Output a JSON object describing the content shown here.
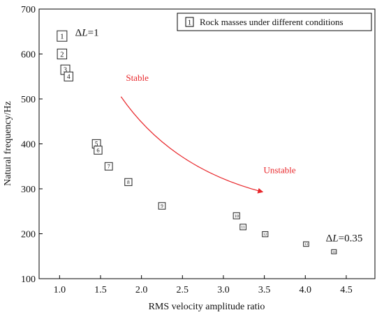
{
  "chart_data": {
    "type": "scatter",
    "xlabel": "RMS velocity amplitude ratio",
    "ylabel": "Natural frequency/Hz",
    "xlim": [
      0.75,
      4.85
    ],
    "ylim": [
      100,
      700
    ],
    "x_ticks": [
      1.0,
      1.5,
      2.0,
      2.5,
      3.0,
      3.5,
      4.0,
      4.5
    ],
    "y_ticks": [
      100,
      200,
      300,
      400,
      500,
      600,
      700
    ],
    "x_tick_labels": [
      "1.0",
      "1.5",
      "2.0",
      "2.5",
      "3.0",
      "3.5",
      "4.0",
      "4.5"
    ],
    "y_tick_labels": [
      "100",
      "200",
      "300",
      "400",
      "500",
      "600",
      "700"
    ],
    "grid": false,
    "legend": {
      "placement": "top-right",
      "marker_label": "1",
      "text": "Rock masses under different conditions"
    },
    "points": [
      {
        "label": "1",
        "x": 1.03,
        "y": 640
      },
      {
        "label": "2",
        "x": 1.03,
        "y": 600
      },
      {
        "label": "3",
        "x": 1.07,
        "y": 565
      },
      {
        "label": "4",
        "x": 1.11,
        "y": 550
      },
      {
        "label": "5",
        "x": 1.45,
        "y": 400
      },
      {
        "label": "6",
        "x": 1.47,
        "y": 386
      },
      {
        "label": "7",
        "x": 1.6,
        "y": 350
      },
      {
        "label": "8",
        "x": 1.84,
        "y": 315
      },
      {
        "label": "9",
        "x": 2.25,
        "y": 262
      },
      {
        "label": "10",
        "x": 3.16,
        "y": 240
      },
      {
        "label": "11",
        "x": 3.24,
        "y": 215
      },
      {
        "label": "12",
        "x": 3.51,
        "y": 199
      },
      {
        "label": "13",
        "x": 4.01,
        "y": 177
      },
      {
        "label": "14",
        "x": 4.35,
        "y": 160
      }
    ],
    "annotations": {
      "delta_top": {
        "prefix": "Δ",
        "var": "L",
        "suffix": "=1",
        "x": 1.19,
        "y": 640
      },
      "delta_bottom": {
        "prefix": "Δ",
        "var": "L",
        "suffix": "=0.35",
        "x": 4.25,
        "y": 183
      },
      "stable": {
        "text": "Stable",
        "x": 1.81,
        "y": 540
      },
      "unstable": {
        "text": "Unstable",
        "x": 3.49,
        "y": 335
      },
      "trend_arrow": {
        "color": "#e8262a",
        "from": [
          1.75,
          505
        ],
        "to": [
          3.48,
          293
        ]
      }
    }
  }
}
